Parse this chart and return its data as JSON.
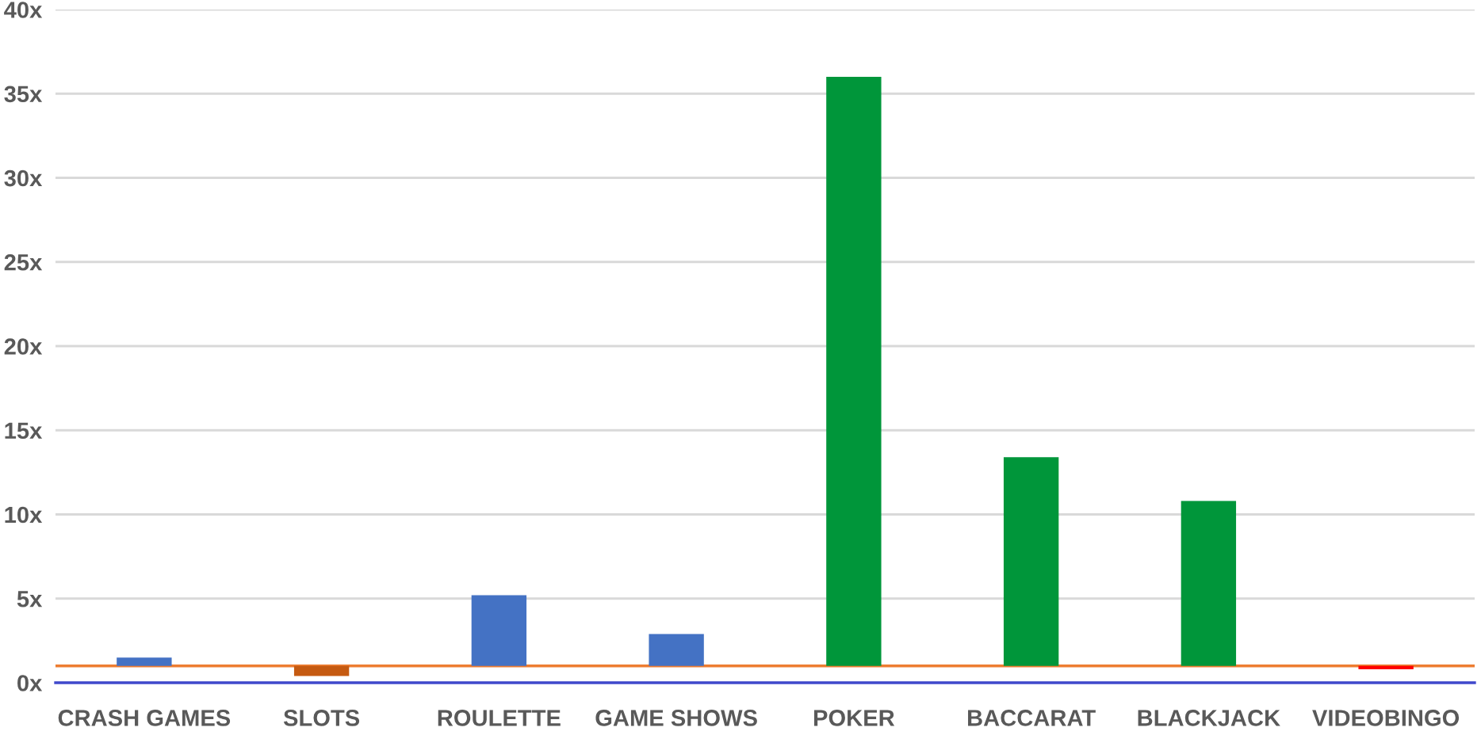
{
  "chart_data": {
    "type": "bar",
    "categories": [
      "CRASH GAMES",
      "SLOTS",
      "ROULETTE",
      "GAME SHOWS",
      "POKER",
      "BACCARAT",
      "BLACKJACK",
      "VIDEOBINGO"
    ],
    "base": [
      1,
      1,
      1,
      1,
      1,
      1,
      1,
      1
    ],
    "values": [
      0.5,
      -0.6,
      4.2,
      1.9,
      35,
      12.4,
      9.8,
      -0.2
    ],
    "colors": [
      "#4472c4",
      "#c55a11",
      "#4472c4",
      "#4472c4",
      "#00963a",
      "#00963a",
      "#00963a",
      "#ff0000"
    ],
    "ylim": [
      0,
      40
    ],
    "yticks": [
      {
        "value": 0,
        "label": "0x"
      },
      {
        "value": 5,
        "label": "5x"
      },
      {
        "value": 10,
        "label": "10x"
      },
      {
        "value": 15,
        "label": "15x"
      },
      {
        "value": 20,
        "label": "20x"
      },
      {
        "value": 25,
        "label": "25x"
      },
      {
        "value": 30,
        "label": "30x"
      },
      {
        "value": 35,
        "label": "35x"
      },
      {
        "value": 40,
        "label": "40x"
      }
    ],
    "ref_lines": [
      {
        "axis": "y",
        "value": 1,
        "label": null,
        "color": "#ed7d31"
      }
    ],
    "grid": "y",
    "legend": false
  }
}
